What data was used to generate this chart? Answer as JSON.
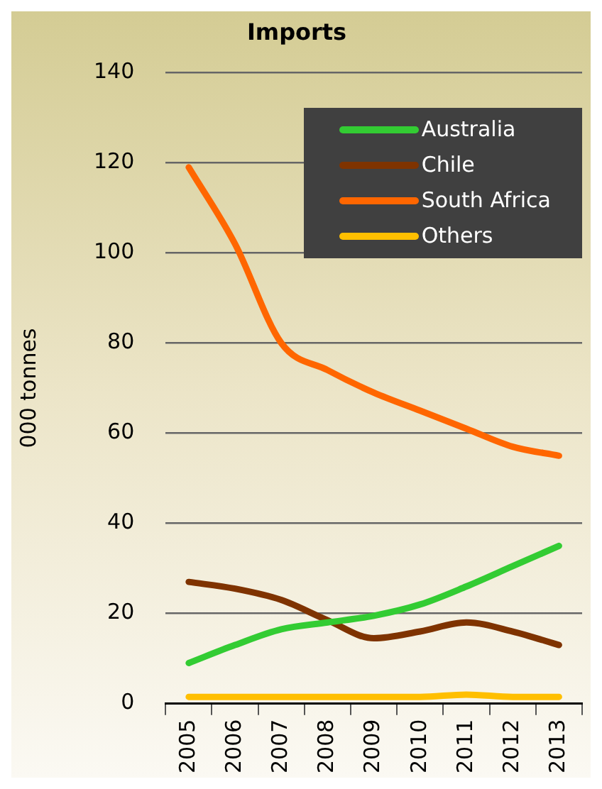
{
  "chart_data": {
    "type": "line",
    "title": "Imports",
    "ylabel": "000 tonnes",
    "categories": [
      "2005",
      "2006",
      "2007",
      "2008",
      "2009",
      "2010",
      "2011",
      "2012",
      "2013"
    ],
    "series": [
      {
        "name": "Australia",
        "color": "#33cc33",
        "values": [
          9,
          13,
          16.5,
          18,
          19.5,
          22,
          26,
          30.5,
          35
        ]
      },
      {
        "name": "Chile",
        "color": "#7f3300",
        "values": [
          27,
          25.5,
          23,
          18.5,
          14.5,
          16,
          18,
          16,
          13
        ]
      },
      {
        "name": "South Africa",
        "color": "#ff6600",
        "values": [
          119,
          102,
          80,
          74,
          69,
          65,
          61,
          57,
          55
        ]
      },
      {
        "name": "Others",
        "color": "#ffbf00",
        "values": [
          1.5,
          1.5,
          1.5,
          1.5,
          1.5,
          1.5,
          2,
          1.5,
          1.5
        ]
      }
    ],
    "ylim": [
      0,
      140
    ],
    "yticks": [
      0,
      20,
      40,
      60,
      80,
      100,
      120,
      140
    ],
    "grid": "y",
    "legend": "top right"
  }
}
